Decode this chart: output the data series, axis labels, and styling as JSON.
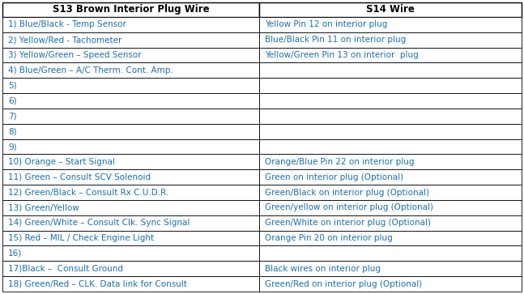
{
  "title_col1": "S13 Brown Interior Plug Wire",
  "title_col2": "S14 Wire",
  "rows": [
    [
      "1) Blue/Black - Temp Sensor",
      "Yellow Pin 12 on interior plug"
    ],
    [
      "2) Yellow/Red - Tachometer",
      "Blue/Black Pin 11 on interior plug"
    ],
    [
      "3) Yellow/Green – Speed Sensor",
      "Yellow/Green Pin 13 on interior  plug"
    ],
    [
      "4) Blue/Green – A/C Therm. Cont. Amp.",
      ""
    ],
    [
      "5)",
      ""
    ],
    [
      "6)",
      ""
    ],
    [
      "7)",
      ""
    ],
    [
      "8)",
      ""
    ],
    [
      "9)",
      ""
    ],
    [
      "10) Orange – Start Signal",
      "Orange/Blue Pin 22 on interior plug"
    ],
    [
      "11) Green – Consult SCV Solenoid",
      "Green on interior plug (Optional)"
    ],
    [
      "12) Green/Black – Consult Rx C.U.D.R.",
      "Green/Black on interior plug (Optional)"
    ],
    [
      "13) Green/Yellow",
      "Green/yellow on interior plug (Optional)"
    ],
    [
      "14) Green/White – Consult Clk. Sync Signal",
      "Green/White on interior plug (Optional)"
    ],
    [
      "15) Red – MIL / Check Engine Light",
      "Orange Pin 20 on interior plug"
    ],
    [
      "16)",
      ""
    ],
    [
      "17)Black –  Consult Ground",
      "Black wires on interior plug"
    ],
    [
      "18) Green/Red – CLK. Data link for Consult",
      "Green/Red on interior plug (Optional)"
    ]
  ],
  "border_color": "#000000",
  "header_text_color": "#000000",
  "text_color": "#1a6faf",
  "header_font_size": 8.5,
  "cell_font_size": 7.5,
  "col_split": 0.495,
  "fig_width": 6.47,
  "fig_height": 3.63,
  "dpi": 100
}
